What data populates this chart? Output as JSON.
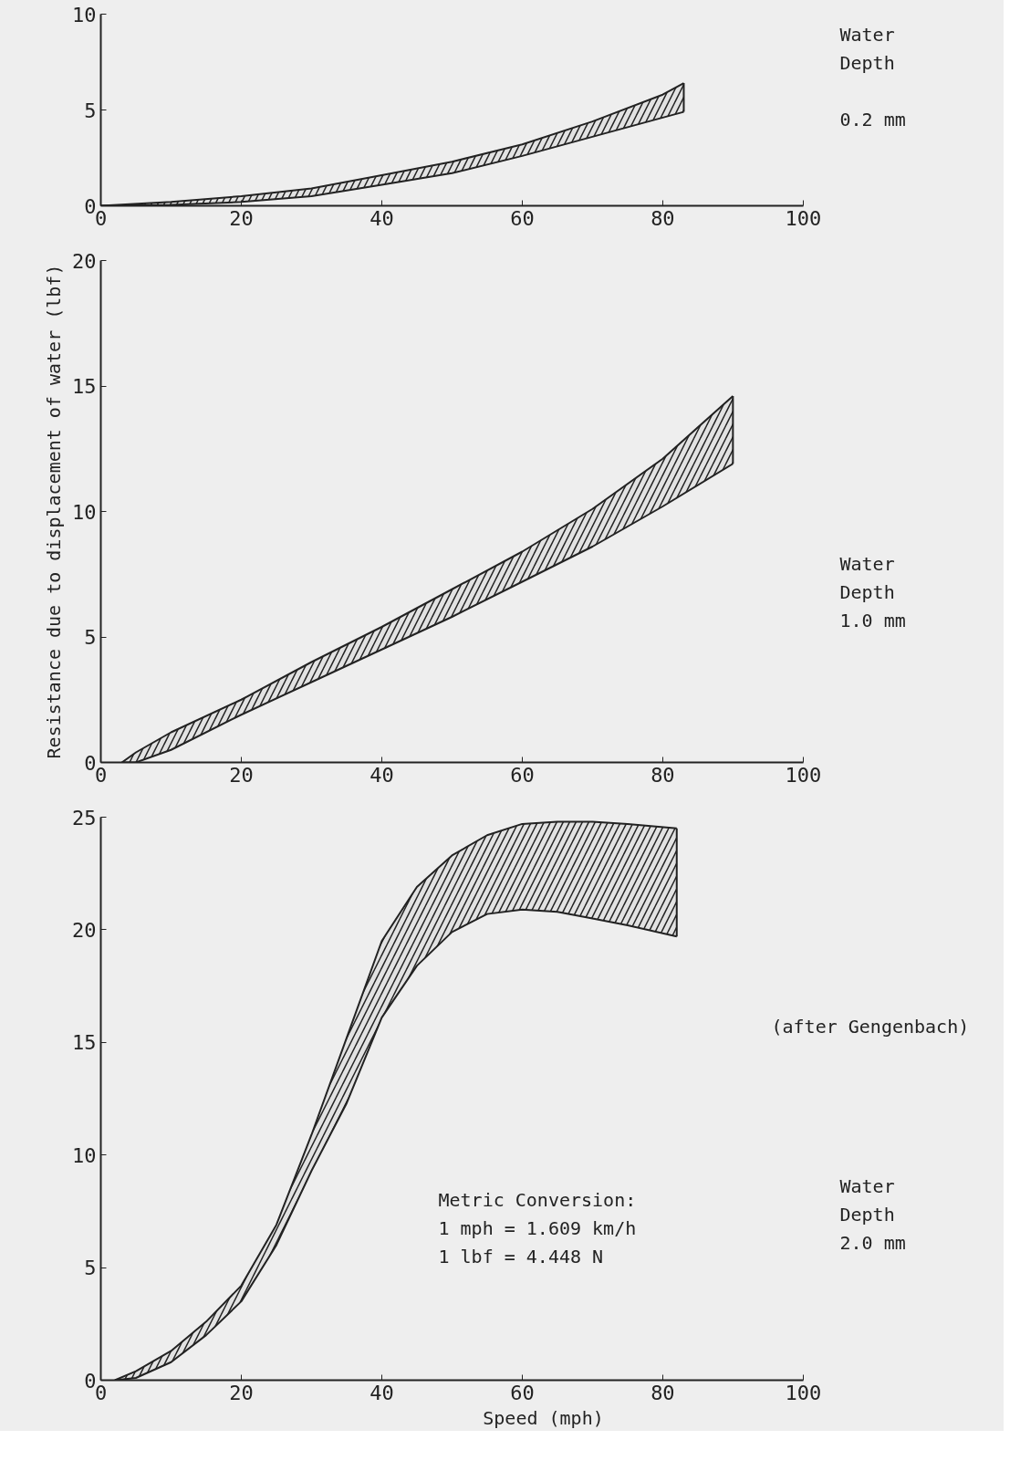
{
  "chart_data": [
    {
      "type": "line",
      "x": [
        0,
        10,
        20,
        30,
        40,
        50,
        60,
        70,
        80,
        83
      ],
      "xlim": [
        0,
        100
      ],
      "ylim": [
        0,
        10
      ],
      "xticks": [
        0,
        20,
        40,
        60,
        80,
        100
      ],
      "yticks": [
        0,
        5,
        10
      ],
      "grid": false,
      "series": [
        {
          "color": "#222222",
          "values": [
            0,
            0.2,
            0.5,
            0.9,
            1.6,
            2.3,
            3.2,
            4.4,
            5.8,
            6.4
          ],
          "upper": [
            0,
            0.2,
            0.5,
            0.9,
            1.6,
            2.3,
            3.2,
            4.4,
            5.8,
            6.4
          ],
          "lower": [
            0,
            0.05,
            0.2,
            0.5,
            1.1,
            1.7,
            2.6,
            3.6,
            4.6,
            4.9
          ]
        },
        {
          "color": "#222222",
          "values": [
            0,
            0.05,
            0.2,
            0.5,
            1.1,
            1.7,
            2.6,
            3.6,
            4.6,
            4.9
          ]
        },
        {
          "color": "#222222",
          "x": [
            83,
            83
          ],
          "values": [
            4.9,
            6.4
          ]
        }
      ],
      "annotations": [
        "Water\nDepth\n\n0.2 mm"
      ]
    },
    {
      "type": "line",
      "x": [
        3,
        5,
        10,
        20,
        30,
        40,
        50,
        60,
        70,
        80,
        90
      ],
      "xlim": [
        0,
        100
      ],
      "ylim": [
        0,
        20
      ],
      "xticks": [
        0,
        20,
        40,
        60,
        80,
        100
      ],
      "yticks": [
        0,
        5,
        10,
        15,
        20
      ],
      "grid": false,
      "ylabel": "Resistance due to displacement of water (lbf)",
      "series": [
        {
          "color": "#222222",
          "values": [
            0,
            0.4,
            1.2,
            2.5,
            4.0,
            5.4,
            6.9,
            8.4,
            10.1,
            12.1,
            14.6
          ],
          "upper": [
            0,
            0.4,
            1.2,
            2.5,
            4.0,
            5.4,
            6.9,
            8.4,
            10.1,
            12.1,
            14.6
          ],
          "lower": [
            0,
            0,
            0.5,
            1.9,
            3.2,
            4.5,
            5.8,
            7.2,
            8.6,
            10.2,
            11.9
          ]
        },
        {
          "color": "#222222",
          "values": [
            0,
            0,
            0.5,
            1.9,
            3.2,
            4.5,
            5.8,
            7.2,
            8.6,
            10.2,
            11.9
          ]
        },
        {
          "color": "#222222",
          "x": [
            90,
            90
          ],
          "values": [
            11.9,
            14.6
          ]
        }
      ],
      "annotations": [
        "Water\nDepth\n1.0 mm"
      ]
    },
    {
      "type": "line",
      "x": [
        2,
        5,
        10,
        15,
        20,
        25,
        30,
        35,
        40,
        45,
        50,
        55,
        60,
        65,
        70,
        75,
        82
      ],
      "xlim": [
        0,
        100
      ],
      "ylim": [
        0,
        25
      ],
      "xticks": [
        0,
        20,
        40,
        60,
        80,
        100
      ],
      "yticks": [
        0,
        5,
        10,
        15,
        20,
        25
      ],
      "grid": false,
      "xlabel": "Speed (mph)",
      "series": [
        {
          "color": "#222222",
          "values": [
            0,
            0.4,
            1.3,
            2.6,
            4.2,
            6.9,
            10.9,
            15.2,
            19.5,
            21.9,
            23.3,
            24.2,
            24.7,
            24.8,
            24.8,
            24.7,
            24.5
          ],
          "upper": [
            0,
            0.4,
            1.3,
            2.6,
            4.2,
            6.9,
            10.9,
            15.2,
            19.5,
            21.9,
            23.3,
            24.2,
            24.7,
            24.8,
            24.8,
            24.7,
            24.5
          ],
          "lower": [
            0,
            0.1,
            0.8,
            2.0,
            3.5,
            6.0,
            9.3,
            12.3,
            16.1,
            18.4,
            19.9,
            20.7,
            20.9,
            20.8,
            20.5,
            20.2,
            19.7
          ]
        },
        {
          "color": "#222222",
          "values": [
            0,
            0.1,
            0.8,
            2.0,
            3.5,
            6.0,
            9.3,
            12.3,
            16.1,
            18.4,
            19.9,
            20.7,
            20.9,
            20.8,
            20.5,
            20.2,
            19.7
          ]
        },
        {
          "color": "#222222",
          "x": [
            82,
            82
          ],
          "values": [
            19.7,
            24.5
          ]
        }
      ],
      "annotations": [
        "(after Gengenbach)",
        "Metric Conversion:\n  1 mph = 1.609 km/h\n  1 lbf = 4.448 N",
        "Water\nDepth\n2.0 mm"
      ]
    }
  ]
}
